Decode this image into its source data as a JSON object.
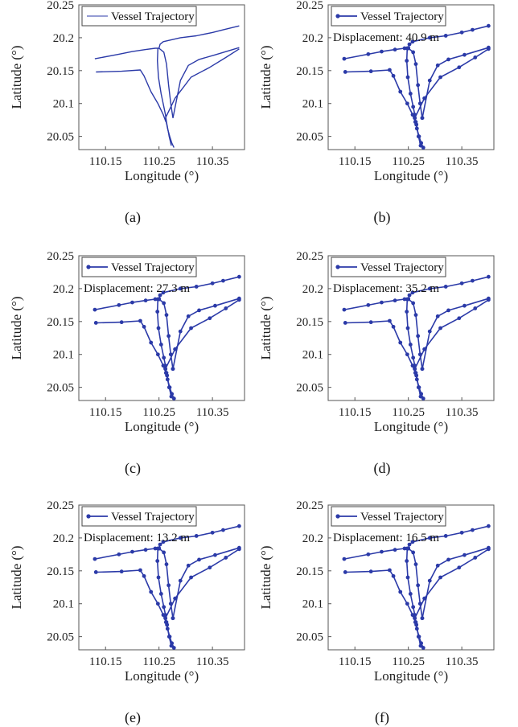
{
  "figure": {
    "subfigures": [
      {
        "caption": "(a)",
        "displacement": "",
        "markers": false
      },
      {
        "caption": "(b)",
        "displacement": "Displacement: 40.9 m",
        "markers": true
      },
      {
        "caption": "(c)",
        "displacement": "Displacement: 27.3 m",
        "markers": true
      },
      {
        "caption": "(d)",
        "displacement": "Displacement: 35.2 m",
        "markers": true
      },
      {
        "caption": "(e)",
        "displacement": "Displacement: 13.2 m",
        "markers": true
      },
      {
        "caption": "(f)",
        "displacement": "Displacement: 16.5 m",
        "markers": true
      }
    ]
  },
  "chart_data": {
    "type": "line",
    "xlabel": "Longitude (°)",
    "ylabel": "Latitude (°)",
    "xlim": [
      110.1,
      110.41
    ],
    "ylim": [
      20.03,
      20.25
    ],
    "xticks": [
      "110.15",
      "110.25",
      "110.35"
    ],
    "xtick_values": [
      110.15,
      110.25,
      110.35
    ],
    "yticks": [
      "20.05",
      "20.1",
      "20.15",
      "20.2",
      "20.25"
    ],
    "ytick_values": [
      20.05,
      20.1,
      20.15,
      20.2,
      20.25
    ],
    "grid": false,
    "legend_position": "top-left",
    "series": [
      {
        "name": "Vessel Trajectory",
        "color": "#2b3aa8",
        "segments": [
          {
            "x": [
              110.13,
              110.175,
              110.2,
              110.225,
              110.243,
              110.25
            ],
            "y": [
              20.168,
              20.175,
              20.179,
              20.182,
              20.184,
              20.184
            ]
          },
          {
            "x": [
              110.25,
              110.252,
              110.258,
              110.29,
              110.32,
              110.35,
              110.37,
              110.4
            ],
            "y": [
              20.184,
              20.19,
              20.194,
              20.2,
              20.203,
              20.208,
              20.212,
              20.218
            ]
          },
          {
            "x": [
              110.132,
              110.18,
              110.215,
              110.222,
              110.235,
              110.248,
              110.258,
              110.263
            ],
            "y": [
              20.148,
              20.149,
              20.151,
              20.142,
              20.118,
              20.1,
              20.083,
              20.072
            ]
          },
          {
            "x": [
              110.248,
              110.247,
              110.249,
              110.254,
              110.259,
              110.262,
              110.264,
              110.265
            ],
            "y": [
              20.184,
              20.165,
              20.14,
              20.115,
              20.095,
              20.083,
              20.072,
              20.068
            ]
          },
          {
            "x": [
              110.25,
              110.259,
              110.264,
              110.268,
              110.272,
              110.276
            ],
            "y": [
              20.184,
              20.178,
              20.16,
              20.128,
              20.1,
              20.078
            ]
          },
          {
            "x": [
              110.276,
              110.29,
              110.305,
              110.325,
              110.355,
              110.4
            ],
            "y": [
              20.078,
              20.135,
              20.158,
              20.167,
              20.174,
              20.185
            ]
          },
          {
            "x": [
              110.262,
              110.28,
              110.31,
              110.345,
              110.375,
              110.4
            ],
            "y": [
              20.078,
              20.108,
              20.14,
              20.155,
              20.17,
              20.183
            ]
          },
          {
            "x": [
              110.262,
              110.266,
              110.27,
              110.274,
              110.278
            ],
            "y": [
              20.078,
              20.062,
              20.05,
              20.04,
              20.033
            ]
          },
          {
            "x": [
              110.265,
              110.269,
              110.273
            ],
            "y": [
              20.068,
              20.05,
              20.036
            ]
          }
        ]
      }
    ]
  }
}
